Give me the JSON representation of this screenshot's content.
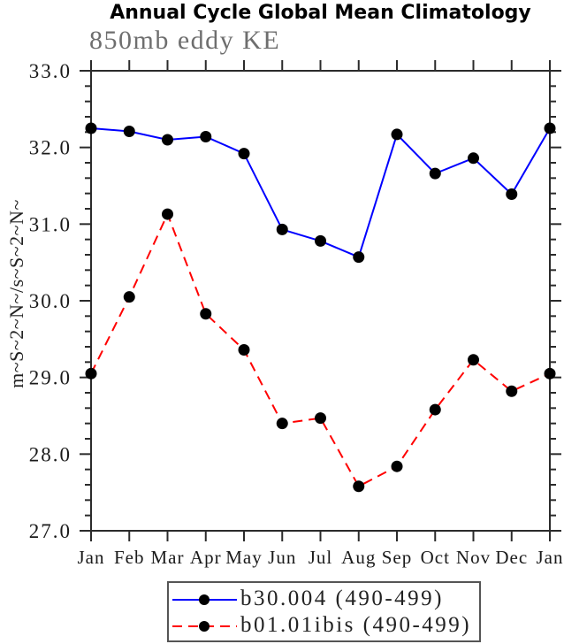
{
  "chart_data": {
    "type": "line",
    "title": "Annual Cycle Global Mean Climatology",
    "subtitle": "850mb eddy KE",
    "ylabel": "m~S~2~N~/s~S~2~N~",
    "xlabel": "",
    "categories": [
      "Jan",
      "Feb",
      "Mar",
      "Apr",
      "May",
      "Jun",
      "Jul",
      "Aug",
      "Sep",
      "Oct",
      "Nov",
      "Dec",
      "Jan"
    ],
    "ylim": [
      27.0,
      33.0
    ],
    "ytick_major_interval": 1.0,
    "ytick_minor_interval": 0.2,
    "ytick_labels": [
      "33.0",
      "32.0",
      "31.0",
      "30.0",
      "29.0",
      "28.0",
      "27.0"
    ],
    "grid": false,
    "legend_position": "bottom-center",
    "series": [
      {
        "name": "b30.004 (490-499)",
        "color": "#0000ff",
        "style": "solid",
        "marker": "filled-circle",
        "marker_color": "#000000",
        "values": [
          32.25,
          32.21,
          32.1,
          32.14,
          31.92,
          30.93,
          30.78,
          30.57,
          32.17,
          31.66,
          31.86,
          31.39,
          32.25
        ]
      },
      {
        "name": "b01.01ibis (490-499)",
        "color": "#ff0000",
        "style": "dashed",
        "marker": "filled-circle",
        "marker_color": "#000000",
        "values": [
          29.05,
          30.05,
          31.13,
          29.83,
          29.36,
          28.4,
          28.47,
          27.58,
          27.84,
          28.58,
          29.23,
          28.82,
          29.05
        ]
      }
    ]
  }
}
